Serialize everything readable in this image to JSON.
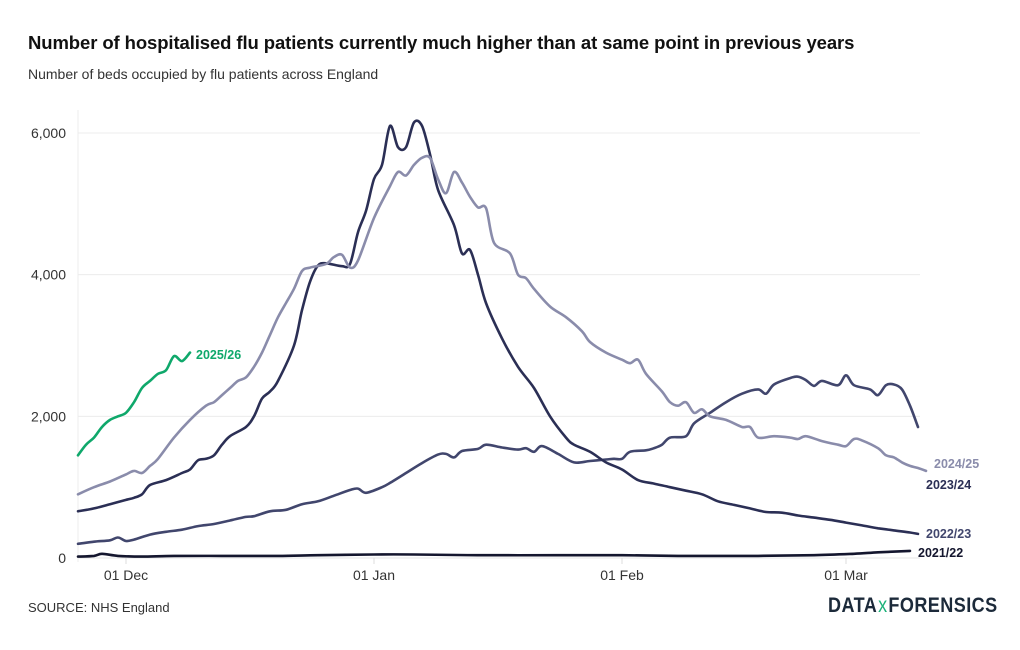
{
  "header": {
    "title": "Number of hospitalised flu patients currently much higher than at same point in previous years",
    "subtitle": "Number of beds occupied by flu patients across England"
  },
  "footer": {
    "source": "SOURCE: NHS England",
    "brand_left": "DATA",
    "brand_mid": "x",
    "brand_right": "FORENSICS"
  },
  "chart_data": {
    "type": "line",
    "title": "Number of hospitalised flu patients currently much higher than at same point in previous years",
    "subtitle": "Number of beds occupied by flu patients across England",
    "xlabel": "",
    "ylabel": "",
    "x_unit": "days since 25 Nov",
    "xlim": [
      0,
      106
    ],
    "ylim": [
      0,
      6200
    ],
    "grid": true,
    "legend": "inline labels at line ends",
    "y_ticks": [
      {
        "value": 0,
        "label": "0"
      },
      {
        "value": 2000,
        "label": "2,000"
      },
      {
        "value": 4000,
        "label": "4,000"
      },
      {
        "value": 6000,
        "label": "6,000"
      }
    ],
    "x_ticks": [
      {
        "value": 6,
        "label": "01 Dec"
      },
      {
        "value": 37,
        "label": "01 Jan"
      },
      {
        "value": 68,
        "label": "01 Feb"
      },
      {
        "value": 96,
        "label": "01 Mar"
      }
    ],
    "series": [
      {
        "name": "2021/22",
        "label": "2021/22",
        "color": "#14162e",
        "points": [
          [
            0,
            20
          ],
          [
            2,
            30
          ],
          [
            3,
            60
          ],
          [
            5,
            30
          ],
          [
            8,
            20
          ],
          [
            12,
            30
          ],
          [
            18,
            30
          ],
          [
            25,
            30
          ],
          [
            30,
            40
          ],
          [
            37,
            50
          ],
          [
            42,
            50
          ],
          [
            50,
            40
          ],
          [
            60,
            40
          ],
          [
            68,
            40
          ],
          [
            75,
            30
          ],
          [
            85,
            30
          ],
          [
            92,
            40
          ],
          [
            97,
            60
          ],
          [
            100,
            80
          ],
          [
            104,
            100
          ]
        ]
      },
      {
        "name": "2022/23",
        "label": "2022/23",
        "color": "#41466d",
        "points": [
          [
            0,
            200
          ],
          [
            2,
            230
          ],
          [
            4,
            250
          ],
          [
            5,
            290
          ],
          [
            6,
            240
          ],
          [
            7,
            260
          ],
          [
            9,
            330
          ],
          [
            11,
            370
          ],
          [
            13,
            400
          ],
          [
            15,
            450
          ],
          [
            17,
            480
          ],
          [
            19,
            530
          ],
          [
            21,
            580
          ],
          [
            22,
            590
          ],
          [
            24,
            660
          ],
          [
            26,
            680
          ],
          [
            28,
            760
          ],
          [
            30,
            800
          ],
          [
            32,
            880
          ],
          [
            34,
            960
          ],
          [
            35,
            980
          ],
          [
            36,
            920
          ],
          [
            38,
            1000
          ],
          [
            39,
            1060
          ],
          [
            41,
            1200
          ],
          [
            43,
            1340
          ],
          [
            45,
            1460
          ],
          [
            46,
            1470
          ],
          [
            47,
            1420
          ],
          [
            48,
            1510
          ],
          [
            50,
            1540
          ],
          [
            51,
            1600
          ],
          [
            53,
            1560
          ],
          [
            55,
            1530
          ],
          [
            56,
            1550
          ],
          [
            57,
            1500
          ],
          [
            58,
            1580
          ],
          [
            60,
            1470
          ],
          [
            62,
            1350
          ],
          [
            64,
            1370
          ],
          [
            66,
            1390
          ],
          [
            67,
            1400
          ],
          [
            68,
            1400
          ],
          [
            69,
            1500
          ],
          [
            71,
            1520
          ],
          [
            72,
            1550
          ],
          [
            73,
            1600
          ],
          [
            74,
            1700
          ],
          [
            76,
            1720
          ],
          [
            77,
            1900
          ],
          [
            79,
            2050
          ],
          [
            81,
            2200
          ],
          [
            83,
            2320
          ],
          [
            85,
            2380
          ],
          [
            86,
            2320
          ],
          [
            87,
            2450
          ],
          [
            89,
            2540
          ],
          [
            90,
            2560
          ],
          [
            91,
            2510
          ],
          [
            92,
            2430
          ],
          [
            93,
            2500
          ],
          [
            95,
            2440
          ],
          [
            96,
            2580
          ],
          [
            97,
            2440
          ],
          [
            99,
            2380
          ],
          [
            100,
            2300
          ],
          [
            101,
            2440
          ],
          [
            102,
            2450
          ],
          [
            103,
            2380
          ],
          [
            104,
            2150
          ],
          [
            105,
            1850
          ]
        ]
      },
      {
        "name": "2023/24",
        "label": "2023/24",
        "color": "#2b2f55",
        "points": [
          [
            0,
            660
          ],
          [
            2,
            700
          ],
          [
            4,
            760
          ],
          [
            6,
            820
          ],
          [
            7,
            850
          ],
          [
            8,
            900
          ],
          [
            9,
            1030
          ],
          [
            11,
            1100
          ],
          [
            13,
            1200
          ],
          [
            14,
            1250
          ],
          [
            15,
            1380
          ],
          [
            16,
            1400
          ],
          [
            17,
            1450
          ],
          [
            18,
            1600
          ],
          [
            19,
            1720
          ],
          [
            21,
            1850
          ],
          [
            22,
            2000
          ],
          [
            23,
            2250
          ],
          [
            24,
            2350
          ],
          [
            25,
            2500
          ],
          [
            27,
            3000
          ],
          [
            28,
            3500
          ],
          [
            29,
            3900
          ],
          [
            30,
            4130
          ],
          [
            31,
            4160
          ],
          [
            33,
            4120
          ],
          [
            34,
            4150
          ],
          [
            35,
            4600
          ],
          [
            36,
            4900
          ],
          [
            37,
            5350
          ],
          [
            38,
            5550
          ],
          [
            39,
            6100
          ],
          [
            40,
            5800
          ],
          [
            41,
            5800
          ],
          [
            42,
            6150
          ],
          [
            43,
            6100
          ],
          [
            44,
            5700
          ],
          [
            45,
            5200
          ],
          [
            47,
            4700
          ],
          [
            48,
            4300
          ],
          [
            49,
            4350
          ],
          [
            50,
            4000
          ],
          [
            51,
            3600
          ],
          [
            53,
            3100
          ],
          [
            55,
            2700
          ],
          [
            57,
            2400
          ],
          [
            59,
            2000
          ],
          [
            61,
            1700
          ],
          [
            62,
            1600
          ],
          [
            64,
            1500
          ],
          [
            66,
            1350
          ],
          [
            68,
            1250
          ],
          [
            70,
            1100
          ],
          [
            72,
            1050
          ],
          [
            74,
            1000
          ],
          [
            76,
            950
          ],
          [
            78,
            900
          ],
          [
            80,
            800
          ],
          [
            82,
            750
          ],
          [
            84,
            700
          ],
          [
            86,
            650
          ],
          [
            88,
            640
          ],
          [
            90,
            600
          ],
          [
            92,
            570
          ],
          [
            94,
            540
          ],
          [
            96,
            500
          ],
          [
            98,
            460
          ],
          [
            100,
            420
          ],
          [
            102,
            390
          ],
          [
            104,
            360
          ],
          [
            105,
            340
          ]
        ]
      },
      {
        "name": "2024/25",
        "label": "2024/25",
        "color": "#8a8cab",
        "points": [
          [
            0,
            900
          ],
          [
            2,
            1000
          ],
          [
            4,
            1080
          ],
          [
            6,
            1180
          ],
          [
            7,
            1230
          ],
          [
            8,
            1200
          ],
          [
            9,
            1300
          ],
          [
            10,
            1400
          ],
          [
            12,
            1700
          ],
          [
            14,
            1950
          ],
          [
            16,
            2150
          ],
          [
            17,
            2200
          ],
          [
            18,
            2300
          ],
          [
            19,
            2400
          ],
          [
            20,
            2500
          ],
          [
            21,
            2550
          ],
          [
            22,
            2700
          ],
          [
            23,
            2900
          ],
          [
            24,
            3150
          ],
          [
            25,
            3400
          ],
          [
            26,
            3600
          ],
          [
            27,
            3800
          ],
          [
            28,
            4050
          ],
          [
            29,
            4100
          ],
          [
            31,
            4150
          ],
          [
            32,
            4250
          ],
          [
            33,
            4280
          ],
          [
            34,
            4100
          ],
          [
            35,
            4200
          ],
          [
            37,
            4800
          ],
          [
            39,
            5250
          ],
          [
            40,
            5450
          ],
          [
            41,
            5400
          ],
          [
            42,
            5550
          ],
          [
            43,
            5650
          ],
          [
            44,
            5650
          ],
          [
            45,
            5350
          ],
          [
            46,
            5150
          ],
          [
            47,
            5450
          ],
          [
            48,
            5300
          ],
          [
            49,
            5100
          ],
          [
            50,
            4950
          ],
          [
            51,
            4940
          ],
          [
            52,
            4450
          ],
          [
            54,
            4300
          ],
          [
            55,
            4000
          ],
          [
            56,
            3950
          ],
          [
            57,
            3800
          ],
          [
            59,
            3550
          ],
          [
            61,
            3400
          ],
          [
            63,
            3200
          ],
          [
            64,
            3050
          ],
          [
            66,
            2900
          ],
          [
            68,
            2800
          ],
          [
            69,
            2750
          ],
          [
            70,
            2800
          ],
          [
            71,
            2600
          ],
          [
            73,
            2350
          ],
          [
            74,
            2200
          ],
          [
            75,
            2150
          ],
          [
            76,
            2200
          ],
          [
            77,
            2050
          ],
          [
            78,
            2100
          ],
          [
            79,
            2000
          ],
          [
            81,
            1950
          ],
          [
            83,
            1850
          ],
          [
            84,
            1850
          ],
          [
            85,
            1700
          ],
          [
            87,
            1720
          ],
          [
            89,
            1700
          ],
          [
            90,
            1680
          ],
          [
            91,
            1720
          ],
          [
            93,
            1650
          ],
          [
            95,
            1600
          ],
          [
            96,
            1580
          ],
          [
            97,
            1680
          ],
          [
            98,
            1660
          ],
          [
            100,
            1550
          ],
          [
            101,
            1450
          ],
          [
            102,
            1420
          ],
          [
            103,
            1350
          ],
          [
            104,
            1300
          ],
          [
            105,
            1270
          ],
          [
            106,
            1230
          ]
        ]
      },
      {
        "name": "2025/26",
        "label": "2025/26",
        "color": "#0fa86b",
        "points": [
          [
            0,
            1450
          ],
          [
            1,
            1600
          ],
          [
            2,
            1700
          ],
          [
            3,
            1850
          ],
          [
            4,
            1950
          ],
          [
            5,
            2000
          ],
          [
            6,
            2050
          ],
          [
            7,
            2200
          ],
          [
            8,
            2400
          ],
          [
            9,
            2500
          ],
          [
            10,
            2600
          ],
          [
            11,
            2650
          ],
          [
            12,
            2850
          ],
          [
            13,
            2780
          ],
          [
            14,
            2900
          ]
        ]
      }
    ]
  }
}
